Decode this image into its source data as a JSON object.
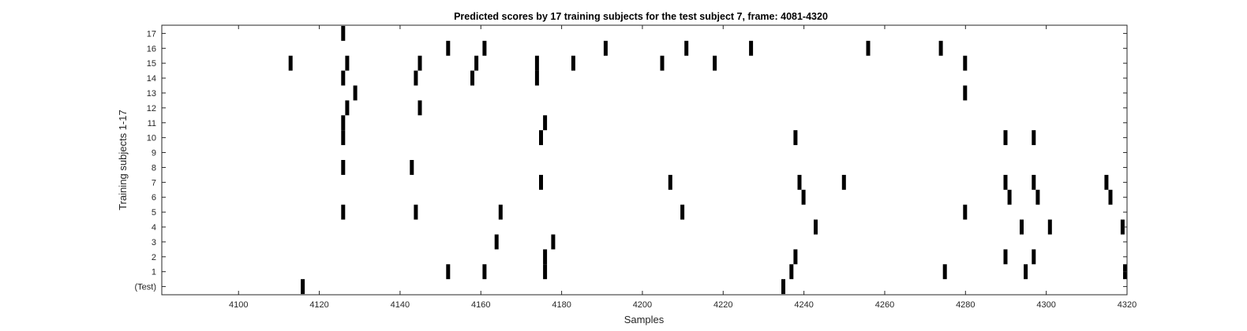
{
  "chart_data": {
    "type": "raster",
    "title": "Predicted scores by 17 training subjects for the test subject 7, frame: 4081-4320",
    "xlabel": "Samples",
    "ylabel": "Training subjects 1-17",
    "xlim": [
      4081,
      4320
    ],
    "xticks": [
      4100,
      4120,
      4140,
      4160,
      4180,
      4200,
      4220,
      4240,
      4260,
      4280,
      4300,
      4320
    ],
    "rows": [
      {
        "label": "(Test)",
        "events": [
          4116,
          4235
        ]
      },
      {
        "label": "1",
        "events": [
          4152,
          4161,
          4176,
          4237,
          4275,
          4295,
          4320
        ]
      },
      {
        "label": "2",
        "events": [
          4176,
          4238,
          4290,
          4297
        ]
      },
      {
        "label": "3",
        "events": [
          4164,
          4178
        ]
      },
      {
        "label": "4",
        "events": [
          4243,
          4294,
          4301,
          4319
        ]
      },
      {
        "label": "5",
        "events": [
          4126,
          4144,
          4165,
          4210,
          4280
        ]
      },
      {
        "label": "6",
        "events": [
          4240,
          4291,
          4298,
          4316
        ]
      },
      {
        "label": "7",
        "events": [
          4175,
          4207,
          4239,
          4250,
          4290,
          4297,
          4315
        ]
      },
      {
        "label": "8",
        "events": [
          4126,
          4143
        ]
      },
      {
        "label": "9",
        "events": []
      },
      {
        "label": "10",
        "events": [
          4126,
          4175,
          4238,
          4290,
          4297
        ]
      },
      {
        "label": "11",
        "events": [
          4126,
          4176
        ]
      },
      {
        "label": "12",
        "events": [
          4127,
          4145
        ]
      },
      {
        "label": "13",
        "events": [
          4129,
          4280
        ]
      },
      {
        "label": "14",
        "events": [
          4126,
          4144,
          4158,
          4174
        ]
      },
      {
        "label": "15",
        "events": [
          4113,
          4127,
          4145,
          4159,
          4174,
          4183,
          4205,
          4218,
          4280
        ]
      },
      {
        "label": "16",
        "events": [
          4152,
          4161,
          4191,
          4211,
          4227,
          4256,
          4274
        ]
      },
      {
        "label": "17",
        "events": [
          4126
        ]
      }
    ],
    "color": "#000000",
    "grid": false,
    "legend": "none"
  }
}
